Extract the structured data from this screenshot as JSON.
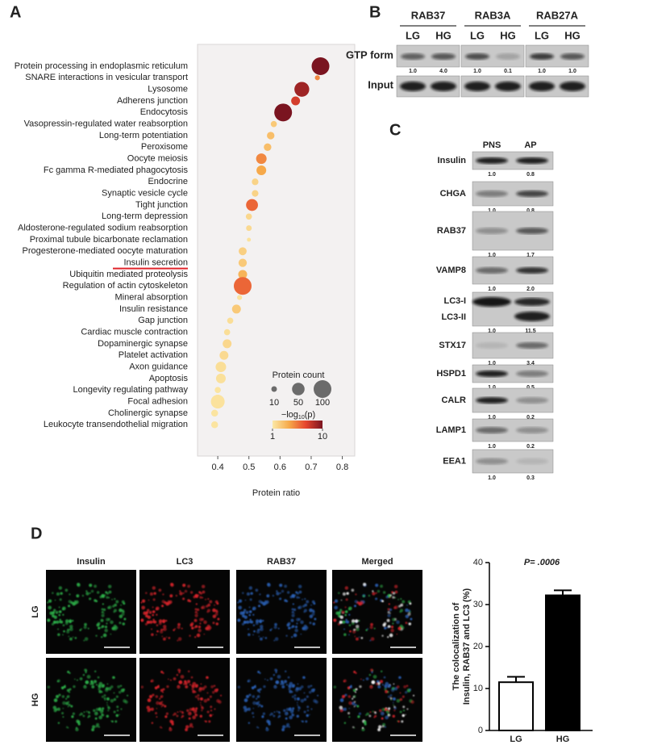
{
  "panel_labels": [
    "A",
    "B",
    "C",
    "D"
  ],
  "chart_data": [
    {
      "type": "bubble",
      "categories": [
        "Protein processing in endoplasmic reticulum",
        "SNARE interactions in vesicular transport",
        "Lysosome",
        "Adherens junction",
        "Endocytosis",
        "Vasopressin-regulated water reabsorption",
        "Long-term potentiation",
        "Peroxisome",
        "Oocyte meiosis",
        "Fc gamma R-mediated phagocytosis",
        "Endocrine",
        "Synaptic vesicle cycle",
        "Tight junction",
        "Long-term depression",
        "Aldosterone-regulated sodium reabsorption",
        "Proximal tubule bicarbonate reclamation",
        "Progesterone-mediated oocyte maturation",
        "Insulin secretion",
        "Ubiquitin mediated proteolysis",
        "Regulation of actin cytoskeleton",
        "Mineral absorption",
        "Insulin resistance",
        "Gap junction",
        "Cardiac muscle contraction",
        "Dopaminergic synapse",
        "Platelet activation",
        "Axon guidance",
        "Apoptosis",
        "Longevity regulating pathway",
        "Focal adhesion",
        "Cholinergic synapse",
        "Leukocyte transendothelial migration"
      ],
      "values": [
        0.73,
        0.72,
        0.67,
        0.65,
        0.61,
        0.58,
        0.57,
        0.56,
        0.54,
        0.54,
        0.52,
        0.52,
        0.51,
        0.5,
        0.5,
        0.5,
        0.48,
        0.48,
        0.48,
        0.48,
        0.47,
        0.46,
        0.44,
        0.43,
        0.43,
        0.42,
        0.41,
        0.41,
        0.4,
        0.4,
        0.39,
        0.39
      ],
      "sizes": [
        100,
        8,
        70,
        25,
        100,
        12,
        18,
        18,
        35,
        30,
        14,
        14,
        45,
        12,
        10,
        5,
        20,
        22,
        25,
        100,
        8,
        25,
        12,
        12,
        25,
        25,
        35,
        30,
        12,
        60,
        15,
        15
      ],
      "color_values": [
        10,
        5,
        9,
        7.5,
        10,
        2.5,
        3,
        3,
        5,
        4,
        2,
        2,
        6,
        1.8,
        1.7,
        1.3,
        2.2,
        2.5,
        3.5,
        6,
        1.3,
        2.5,
        1.5,
        1.5,
        1.8,
        1.7,
        1.5,
        1.4,
        1.2,
        1.3,
        1.2,
        1.2
      ],
      "xlabel": "Protein ratio",
      "xlim": [
        0.335,
        0.84
      ],
      "xticks": [
        0.4,
        0.5,
        0.6,
        0.7,
        0.8
      ],
      "highlight_index": 17,
      "highlight_color": "#e0242b",
      "size_legend": {
        "title": "Protein count",
        "values": [
          10,
          50,
          100
        ]
      },
      "color_legend": {
        "title_parts": [
          "−log",
          "10",
          "(p)"
        ],
        "ticks": [
          1,
          10
        ]
      },
      "color_lim": [
        1,
        10
      ],
      "colormap": [
        "#fbe8a6",
        "#f6a94a",
        "#e6452e",
        "#7a1420"
      ]
    },
    {
      "type": "bar",
      "ylabel": [
        "The colocalization of",
        "Insulin, RAB37 and LC3 (%)"
      ],
      "annotation": "P= .0006",
      "categories": [
        "LG",
        "HG"
      ],
      "values": [
        11.5,
        32.2
      ],
      "errors": [
        1.3,
        1.2
      ],
      "colors": [
        "#ffffff",
        "#000000"
      ],
      "ylim": [
        0,
        40
      ],
      "yticks": [
        0,
        10,
        20,
        30,
        40
      ]
    }
  ],
  "blot_b": {
    "proteins": [
      "RAB37",
      "RAB3A",
      "RAB27A"
    ],
    "conditions": [
      "LG",
      "HG"
    ],
    "rows": [
      "GTP form",
      "Input"
    ],
    "quant": [
      [
        "1.0",
        "4.0"
      ],
      [
        "1.0",
        "0.1"
      ],
      [
        "1.0",
        "1.0"
      ]
    ]
  },
  "blot_c": {
    "columns": [
      "PNS",
      "AP"
    ],
    "rows": [
      {
        "labels": [
          "Insulin"
        ],
        "quant": [
          "1.0",
          "0.8"
        ]
      },
      {
        "labels": [
          "CHGA"
        ],
        "quant": [
          "1.0",
          "0.8"
        ]
      },
      {
        "labels": [
          "RAB37"
        ],
        "quant": [
          "1.0",
          "1.7"
        ]
      },
      {
        "labels": [
          "VAMP8"
        ],
        "quant": [
          "1.0",
          "2.0"
        ]
      },
      {
        "labels": [
          "LC3-I",
          "LC3-II"
        ],
        "quant": [
          "1.0",
          "11.5"
        ]
      },
      {
        "labels": [
          "STX17"
        ],
        "quant": [
          "1.0",
          "3.4"
        ]
      },
      {
        "labels": [
          "HSPD1"
        ],
        "quant": [
          "1.0",
          "0.5"
        ]
      },
      {
        "labels": [
          "CALR"
        ],
        "quant": [
          "1.0",
          "0.2"
        ]
      },
      {
        "labels": [
          "LAMP1"
        ],
        "quant": [
          "1.0",
          "0.2"
        ]
      },
      {
        "labels": [
          "EEA1"
        ],
        "quant": [
          "1.0",
          "0.3"
        ]
      }
    ]
  },
  "micrographs": {
    "channels": [
      {
        "name": "Insulin",
        "color": "#2db34a"
      },
      {
        "name": "LC3",
        "color": "#e0242b"
      },
      {
        "name": "RAB37",
        "color": "#2a62b8"
      },
      {
        "name": "Merged",
        "color": "#111111"
      }
    ],
    "rows": [
      "LG",
      "HG"
    ]
  }
}
